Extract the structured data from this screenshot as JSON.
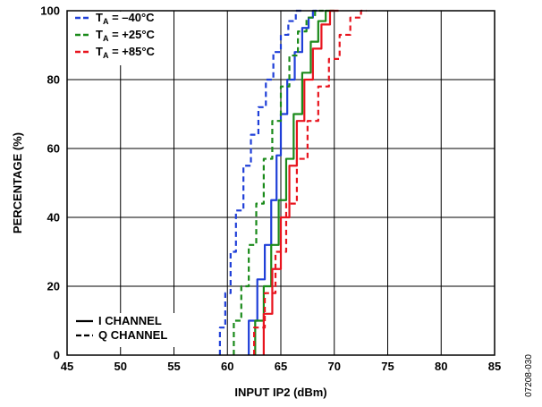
{
  "chart_data": {
    "type": "line",
    "xlabel": "INPUT IP2 (dBm)",
    "ylabel": "PERCENTAGE (%)",
    "xlim": [
      45,
      85
    ],
    "ylim": [
      0,
      100
    ],
    "x_ticks": [
      45,
      50,
      55,
      60,
      65,
      70,
      75,
      80,
      85
    ],
    "y_ticks": [
      0,
      20,
      40,
      60,
      80,
      100
    ],
    "grid": true,
    "legend_temperature": {
      "placement": "top-left",
      "entries": [
        {
          "prefix": "T",
          "sub": "A",
          "suffix": " = –40°C",
          "color": "#1f3fd8"
        },
        {
          "prefix": "T",
          "sub": "A",
          "suffix": " = +25°C",
          "color": "#1a8a1a"
        },
        {
          "prefix": "T",
          "sub": "A",
          "suffix": " = +85°C",
          "color": "#e8141e"
        }
      ]
    },
    "legend_channel": {
      "placement": "bottom-left",
      "entries": [
        {
          "label": "I CHANNEL",
          "dash": "solid"
        },
        {
          "label": "Q CHANNEL",
          "dash": "dashed"
        }
      ]
    },
    "series": [
      {
        "color": "#1f3fd8",
        "dash": "solid",
        "x": [
          62.0,
          62.8,
          63.5,
          64.1,
          64.6,
          65.0,
          65.6,
          66.3,
          67.0,
          67.6,
          68.0,
          68.4
        ],
        "y": [
          0,
          10,
          22,
          32,
          45,
          58,
          70,
          80,
          88,
          95,
          98,
          100
        ]
      },
      {
        "color": "#1a8a1a",
        "dash": "solid",
        "x": [
          62.6,
          63.4,
          64.1,
          64.8,
          65.5,
          66.2,
          67.0,
          67.8,
          68.5,
          69.2,
          70.0
        ],
        "y": [
          0,
          10,
          20,
          32,
          45,
          57,
          70,
          82,
          91,
          97,
          100
        ]
      },
      {
        "color": "#e8141e",
        "dash": "solid",
        "x": [
          63.4,
          64.2,
          65.0,
          65.8,
          66.5,
          67.2,
          68.0,
          68.8,
          69.6,
          70.4
        ],
        "y": [
          0,
          12,
          25,
          40,
          55,
          68,
          80,
          89,
          96,
          100
        ]
      },
      {
        "color": "#1f3fd8",
        "dash": "dashed",
        "x": [
          59.3,
          59.8,
          60.3,
          60.8,
          61.5,
          62.2,
          62.9,
          63.6,
          64.3,
          65.0,
          65.7,
          66.4,
          67.2
        ],
        "y": [
          0,
          8,
          18,
          30,
          42,
          55,
          64,
          72,
          80,
          88,
          93,
          97,
          100
        ]
      },
      {
        "color": "#1a8a1a",
        "dash": "dashed",
        "x": [
          60.6,
          61.3,
          62.0,
          62.7,
          63.4,
          64.2,
          65.0,
          65.8,
          66.6,
          67.4,
          68.2,
          69.0
        ],
        "y": [
          0,
          10,
          20,
          32,
          44,
          57,
          68,
          78,
          87,
          94,
          98,
          100
        ]
      },
      {
        "color": "#e8141e",
        "dash": "dashed",
        "x": [
          62.5,
          63.5,
          64.5,
          65.5,
          66.5,
          67.5,
          68.5,
          69.5,
          70.5,
          71.5,
          72.5,
          73.0
        ],
        "y": [
          0,
          8,
          18,
          30,
          44,
          57,
          68,
          78,
          86,
          93,
          98,
          100
        ]
      }
    ]
  },
  "figure_id": "07208-030"
}
